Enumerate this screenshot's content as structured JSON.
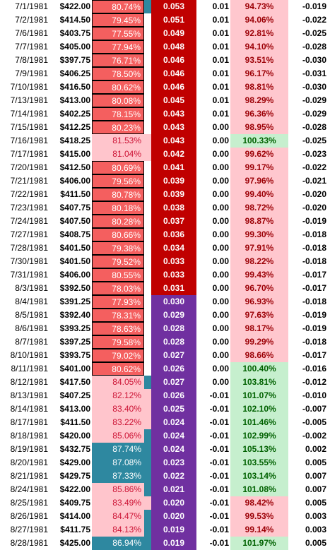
{
  "colors": {
    "pct_red": "#f45f5f",
    "pct_pink": "#ffc5cc",
    "pct_teal": "#2e88a0",
    "strip_teal": "#2e88a0",
    "val_red": "#c00000",
    "val_purple": "#7030a0",
    "ratio_pink": "#ffc7ce",
    "ratio_pink_text": "#9c0006",
    "ratio_green": "#c6efce",
    "ratio_green_text": "#006100"
  },
  "rows": [
    {
      "date": "7/1/1981",
      "price": "$422.00",
      "pct": "80.74%",
      "pct_style": "red",
      "strip": true,
      "val": "0.053",
      "val_color": "red",
      "chg": "0.01",
      "ratio": "94.73%",
      "ratio_color": "pink",
      "last": "-0.019"
    },
    {
      "date": "7/2/1981",
      "price": "$414.50",
      "pct": "79.45%",
      "pct_style": "red",
      "strip": false,
      "val": "0.051",
      "val_color": "red",
      "chg": "0.01",
      "ratio": "94.06%",
      "ratio_color": "pink",
      "last": "-0.022"
    },
    {
      "date": "7/6/1981",
      "price": "$403.75",
      "pct": "77.55%",
      "pct_style": "red",
      "strip": false,
      "val": "0.049",
      "val_color": "red",
      "chg": "0.01",
      "ratio": "92.81%",
      "ratio_color": "pink",
      "last": "-0.025"
    },
    {
      "date": "7/7/1981",
      "price": "$405.00",
      "pct": "77.94%",
      "pct_style": "red",
      "strip": false,
      "val": "0.048",
      "val_color": "red",
      "chg": "0.01",
      "ratio": "94.10%",
      "ratio_color": "pink",
      "last": "-0.028"
    },
    {
      "date": "7/8/1981",
      "price": "$397.75",
      "pct": "76.71%",
      "pct_style": "red",
      "strip": false,
      "val": "0.046",
      "val_color": "red",
      "chg": "0.01",
      "ratio": "93.51%",
      "ratio_color": "pink",
      "last": "-0.030"
    },
    {
      "date": "7/9/1981",
      "price": "$406.25",
      "pct": "78.50%",
      "pct_style": "red",
      "strip": false,
      "val": "0.046",
      "val_color": "red",
      "chg": "0.01",
      "ratio": "96.17%",
      "ratio_color": "pink",
      "last": "-0.031"
    },
    {
      "date": "7/10/1981",
      "price": "$416.50",
      "pct": "80.62%",
      "pct_style": "red",
      "strip": false,
      "val": "0.046",
      "val_color": "red",
      "chg": "0.01",
      "ratio": "98.81%",
      "ratio_color": "pink",
      "last": "-0.030"
    },
    {
      "date": "7/13/1981",
      "price": "$413.00",
      "pct": "80.08%",
      "pct_style": "red",
      "strip": false,
      "val": "0.045",
      "val_color": "red",
      "chg": "0.01",
      "ratio": "98.29%",
      "ratio_color": "pink",
      "last": "-0.029"
    },
    {
      "date": "7/14/1981",
      "price": "$402.25",
      "pct": "78.15%",
      "pct_style": "red",
      "strip": false,
      "val": "0.043",
      "val_color": "red",
      "chg": "0.01",
      "ratio": "96.36%",
      "ratio_color": "pink",
      "last": "-0.029"
    },
    {
      "date": "7/15/1981",
      "price": "$412.25",
      "pct": "80.23%",
      "pct_style": "red",
      "strip": false,
      "val": "0.043",
      "val_color": "red",
      "chg": "0.00",
      "ratio": "98.95%",
      "ratio_color": "pink",
      "last": "-0.028"
    },
    {
      "date": "7/16/1981",
      "price": "$418.25",
      "pct": "81.53%",
      "pct_style": "pink",
      "strip": false,
      "val": "0.043",
      "val_color": "red",
      "chg": "0.00",
      "ratio": "100.33%",
      "ratio_color": "green",
      "last": "-0.025"
    },
    {
      "date": "7/17/1981",
      "price": "$415.00",
      "pct": "81.04%",
      "pct_style": "pink",
      "strip": false,
      "val": "0.042",
      "val_color": "red",
      "chg": "0.00",
      "ratio": "99.62%",
      "ratio_color": "pink",
      "last": "-0.023"
    },
    {
      "date": "7/20/1981",
      "price": "$412.50",
      "pct": "80.69%",
      "pct_style": "red",
      "strip": false,
      "val": "0.041",
      "val_color": "red",
      "chg": "0.00",
      "ratio": "99.17%",
      "ratio_color": "pink",
      "last": "-0.022"
    },
    {
      "date": "7/21/1981",
      "price": "$406.00",
      "pct": "79.56%",
      "pct_style": "red",
      "strip": false,
      "val": "0.039",
      "val_color": "red",
      "chg": "0.00",
      "ratio": "97.96%",
      "ratio_color": "pink",
      "last": "-0.021"
    },
    {
      "date": "7/22/1981",
      "price": "$411.50",
      "pct": "80.78%",
      "pct_style": "red",
      "strip": false,
      "val": "0.039",
      "val_color": "red",
      "chg": "0.00",
      "ratio": "99.40%",
      "ratio_color": "pink",
      "last": "-0.020"
    },
    {
      "date": "7/23/1981",
      "price": "$407.75",
      "pct": "80.18%",
      "pct_style": "red",
      "strip": false,
      "val": "0.038",
      "val_color": "red",
      "chg": "0.00",
      "ratio": "98.72%",
      "ratio_color": "pink",
      "last": "-0.020"
    },
    {
      "date": "7/24/1981",
      "price": "$407.50",
      "pct": "80.28%",
      "pct_style": "red",
      "strip": false,
      "val": "0.037",
      "val_color": "red",
      "chg": "0.00",
      "ratio": "98.87%",
      "ratio_color": "pink",
      "last": "-0.019"
    },
    {
      "date": "7/27/1981",
      "price": "$408.75",
      "pct": "80.66%",
      "pct_style": "red",
      "strip": false,
      "val": "0.036",
      "val_color": "red",
      "chg": "0.00",
      "ratio": "99.30%",
      "ratio_color": "pink",
      "last": "-0.018"
    },
    {
      "date": "7/28/1981",
      "price": "$401.50",
      "pct": "79.38%",
      "pct_style": "red",
      "strip": false,
      "val": "0.034",
      "val_color": "red",
      "chg": "0.00",
      "ratio": "97.91%",
      "ratio_color": "pink",
      "last": "-0.018"
    },
    {
      "date": "7/30/1981",
      "price": "$401.50",
      "pct": "79.52%",
      "pct_style": "red",
      "strip": false,
      "val": "0.033",
      "val_color": "red",
      "chg": "0.00",
      "ratio": "98.22%",
      "ratio_color": "pink",
      "last": "-0.018"
    },
    {
      "date": "7/31/1981",
      "price": "$406.00",
      "pct": "80.55%",
      "pct_style": "red",
      "strip": false,
      "val": "0.033",
      "val_color": "red",
      "chg": "0.00",
      "ratio": "99.43%",
      "ratio_color": "pink",
      "last": "-0.017"
    },
    {
      "date": "8/3/1981",
      "price": "$392.50",
      "pct": "78.03%",
      "pct_style": "red",
      "strip": false,
      "val": "0.031",
      "val_color": "red",
      "chg": "0.00",
      "ratio": "96.70%",
      "ratio_color": "pink",
      "last": "-0.017"
    },
    {
      "date": "8/4/1981",
      "price": "$391.25",
      "pct": "77.93%",
      "pct_style": "red",
      "strip": false,
      "val": "0.030",
      "val_color": "purple",
      "chg": "0.00",
      "ratio": "96.93%",
      "ratio_color": "pink",
      "last": "-0.018"
    },
    {
      "date": "8/5/1981",
      "price": "$392.40",
      "pct": "78.31%",
      "pct_style": "red",
      "strip": false,
      "val": "0.029",
      "val_color": "purple",
      "chg": "0.00",
      "ratio": "97.63%",
      "ratio_color": "pink",
      "last": "-0.019"
    },
    {
      "date": "8/6/1981",
      "price": "$393.25",
      "pct": "78.63%",
      "pct_style": "red",
      "strip": false,
      "val": "0.028",
      "val_color": "purple",
      "chg": "0.00",
      "ratio": "98.17%",
      "ratio_color": "pink",
      "last": "-0.019"
    },
    {
      "date": "8/7/1981",
      "price": "$397.25",
      "pct": "79.58%",
      "pct_style": "red",
      "strip": false,
      "val": "0.028",
      "val_color": "purple",
      "chg": "0.00",
      "ratio": "99.29%",
      "ratio_color": "pink",
      "last": "-0.018"
    },
    {
      "date": "8/10/1981",
      "price": "$393.75",
      "pct": "79.02%",
      "pct_style": "red",
      "strip": false,
      "val": "0.027",
      "val_color": "purple",
      "chg": "0.00",
      "ratio": "98.66%",
      "ratio_color": "pink",
      "last": "-0.017"
    },
    {
      "date": "8/11/1981",
      "price": "$401.00",
      "pct": "80.62%",
      "pct_style": "red",
      "strip": false,
      "val": "0.026",
      "val_color": "purple",
      "chg": "0.00",
      "ratio": "100.40%",
      "ratio_color": "green",
      "last": "-0.016"
    },
    {
      "date": "8/12/1981",
      "price": "$417.50",
      "pct": "84.05%",
      "pct_style": "pink",
      "strip": true,
      "val": "0.027",
      "val_color": "purple",
      "chg": "0.00",
      "ratio": "103.81%",
      "ratio_color": "green",
      "last": "-0.012"
    },
    {
      "date": "8/13/1981",
      "price": "$407.25",
      "pct": "82.12%",
      "pct_style": "pink",
      "strip": false,
      "val": "0.026",
      "val_color": "purple",
      "chg": "-0.01",
      "ratio": "101.07%",
      "ratio_color": "green",
      "last": "-0.010"
    },
    {
      "date": "8/14/1981",
      "price": "$413.00",
      "pct": "83.40%",
      "pct_style": "pink",
      "strip": false,
      "val": "0.025",
      "val_color": "purple",
      "chg": "-0.01",
      "ratio": "102.10%",
      "ratio_color": "green",
      "last": "-0.007"
    },
    {
      "date": "8/17/1981",
      "price": "$411.50",
      "pct": "83.22%",
      "pct_style": "pink",
      "strip": false,
      "val": "0.024",
      "val_color": "purple",
      "chg": "-0.01",
      "ratio": "101.46%",
      "ratio_color": "green",
      "last": "-0.005"
    },
    {
      "date": "8/18/1981",
      "price": "$420.00",
      "pct": "85.06%",
      "pct_style": "pink",
      "strip": true,
      "val": "0.024",
      "val_color": "purple",
      "chg": "-0.01",
      "ratio": "102.99%",
      "ratio_color": "green",
      "last": "-0.002"
    },
    {
      "date": "8/19/1981",
      "price": "$432.75",
      "pct": "87.74%",
      "pct_style": "teal",
      "strip": false,
      "val": "0.024",
      "val_color": "purple",
      "chg": "-0.01",
      "ratio": "105.13%",
      "ratio_color": "green",
      "last": "0.002"
    },
    {
      "date": "8/20/1981",
      "price": "$429.00",
      "pct": "87.08%",
      "pct_style": "teal",
      "strip": false,
      "val": "0.023",
      "val_color": "purple",
      "chg": "-0.01",
      "ratio": "103.55%",
      "ratio_color": "green",
      "last": "0.005"
    },
    {
      "date": "8/21/1981",
      "price": "$429.75",
      "pct": "87.33%",
      "pct_style": "teal",
      "strip": false,
      "val": "0.022",
      "val_color": "purple",
      "chg": "-0.01",
      "ratio": "103.14%",
      "ratio_color": "green",
      "last": "0.007"
    },
    {
      "date": "8/24/1981",
      "price": "$422.00",
      "pct": "85.86%",
      "pct_style": "pink",
      "strip": true,
      "val": "0.021",
      "val_color": "purple",
      "chg": "-0.01",
      "ratio": "101.08%",
      "ratio_color": "green",
      "last": "0.007"
    },
    {
      "date": "8/25/1981",
      "price": "$409.75",
      "pct": "83.49%",
      "pct_style": "pink",
      "strip": false,
      "val": "0.020",
      "val_color": "purple",
      "chg": "-0.01",
      "ratio": "98.42%",
      "ratio_color": "pink",
      "last": "0.005"
    },
    {
      "date": "8/26/1981",
      "price": "$414.00",
      "pct": "84.47%",
      "pct_style": "pink",
      "strip": true,
      "val": "0.020",
      "val_color": "purple",
      "chg": "-0.01",
      "ratio": "99.53%",
      "ratio_color": "pink",
      "last": "0.003"
    },
    {
      "date": "8/27/1981",
      "price": "$411.75",
      "pct": "84.13%",
      "pct_style": "pink",
      "strip": true,
      "val": "0.019",
      "val_color": "purple",
      "chg": "-0.01",
      "ratio": "99.14%",
      "ratio_color": "pink",
      "last": "0.003"
    },
    {
      "date": "8/28/1981",
      "price": "$425.00",
      "pct": "86.94%",
      "pct_style": "teal",
      "strip": true,
      "val": "0.019",
      "val_color": "purple",
      "chg": "-0.01",
      "ratio": "101.97%",
      "ratio_color": "green",
      "last": "0.005"
    }
  ]
}
